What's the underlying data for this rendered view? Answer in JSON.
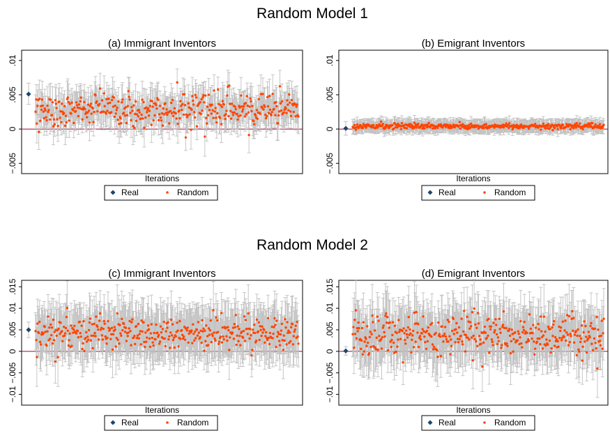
{
  "sections": [
    {
      "title": "Random Model 1"
    },
    {
      "title": "Random Model 2"
    }
  ],
  "legend": {
    "real_label": "Real",
    "random_label": "Random"
  },
  "colors": {
    "real": "#1a476f",
    "random": "#ff4500",
    "ci": "#c0c0c0",
    "zero_line": "#a0002a"
  },
  "chart_data": [
    {
      "type": "scatter",
      "title": "(a) Immigrant Inventors",
      "xlabel": "Iterations",
      "ylabel": "",
      "ylim": [
        -0.0065,
        0.0115
      ],
      "yticks": [
        -0.005,
        0,
        0.005,
        0.01
      ],
      "ytick_labels": [
        "−.005",
        "0",
        ".005",
        ".01"
      ],
      "grid": false,
      "legend_position": "bottom",
      "real": {
        "value": 0.0051,
        "ci": [
          0.0036,
          0.0067
        ]
      },
      "random": {
        "n_iterations": 400,
        "mean": 0.0028,
        "spread": 0.0012,
        "ci_halfwidth": 0.0023
      }
    },
    {
      "type": "scatter",
      "title": "(b) Emigrant Inventors",
      "xlabel": "Iterations",
      "ylabel": "",
      "ylim": [
        -0.0065,
        0.0115
      ],
      "yticks": [
        -0.005,
        0,
        0.005,
        0.01
      ],
      "ytick_labels": [
        "−.005",
        "0",
        ".005",
        ".01"
      ],
      "grid": false,
      "legend_position": "bottom",
      "real": {
        "value": 0.0001,
        "ci": [
          -0.0009,
          0.0011
        ]
      },
      "random": {
        "n_iterations": 400,
        "mean": 0.0004,
        "spread": 0.0002,
        "ci_halfwidth": 0.0009
      }
    },
    {
      "type": "scatter",
      "title": "(c) Immigrant Inventors",
      "xlabel": "Iterations",
      "ylabel": "",
      "ylim": [
        -0.0125,
        0.0165
      ],
      "yticks": [
        -0.01,
        -0.005,
        0,
        0.005,
        0.01,
        0.015
      ],
      "ytick_labels": [
        "−.01",
        "−.005",
        "0",
        ".005",
        ".01",
        ".015"
      ],
      "grid": false,
      "legend_position": "bottom",
      "real": {
        "value": 0.005,
        "ci": [
          0.0032,
          0.0068
        ]
      },
      "random": {
        "n_iterations": 400,
        "mean": 0.0042,
        "spread": 0.0019,
        "ci_halfwidth": 0.0055
      }
    },
    {
      "type": "scatter",
      "title": "(d) Emigrant Inventors",
      "xlabel": "Iterations",
      "ylabel": "",
      "ylim": [
        -0.0125,
        0.0165
      ],
      "yticks": [
        -0.01,
        -0.005,
        0,
        0.005,
        0.01,
        0.015
      ],
      "ytick_labels": [
        "−.01",
        "−.005",
        "0",
        ".005",
        ".01",
        ".015"
      ],
      "grid": false,
      "legend_position": "bottom",
      "real": {
        "value": 0.0001,
        "ci": [
          -0.0009,
          0.0011
        ]
      },
      "random": {
        "n_iterations": 400,
        "mean": 0.0039,
        "spread": 0.0024,
        "ci_halfwidth": 0.006
      }
    }
  ]
}
